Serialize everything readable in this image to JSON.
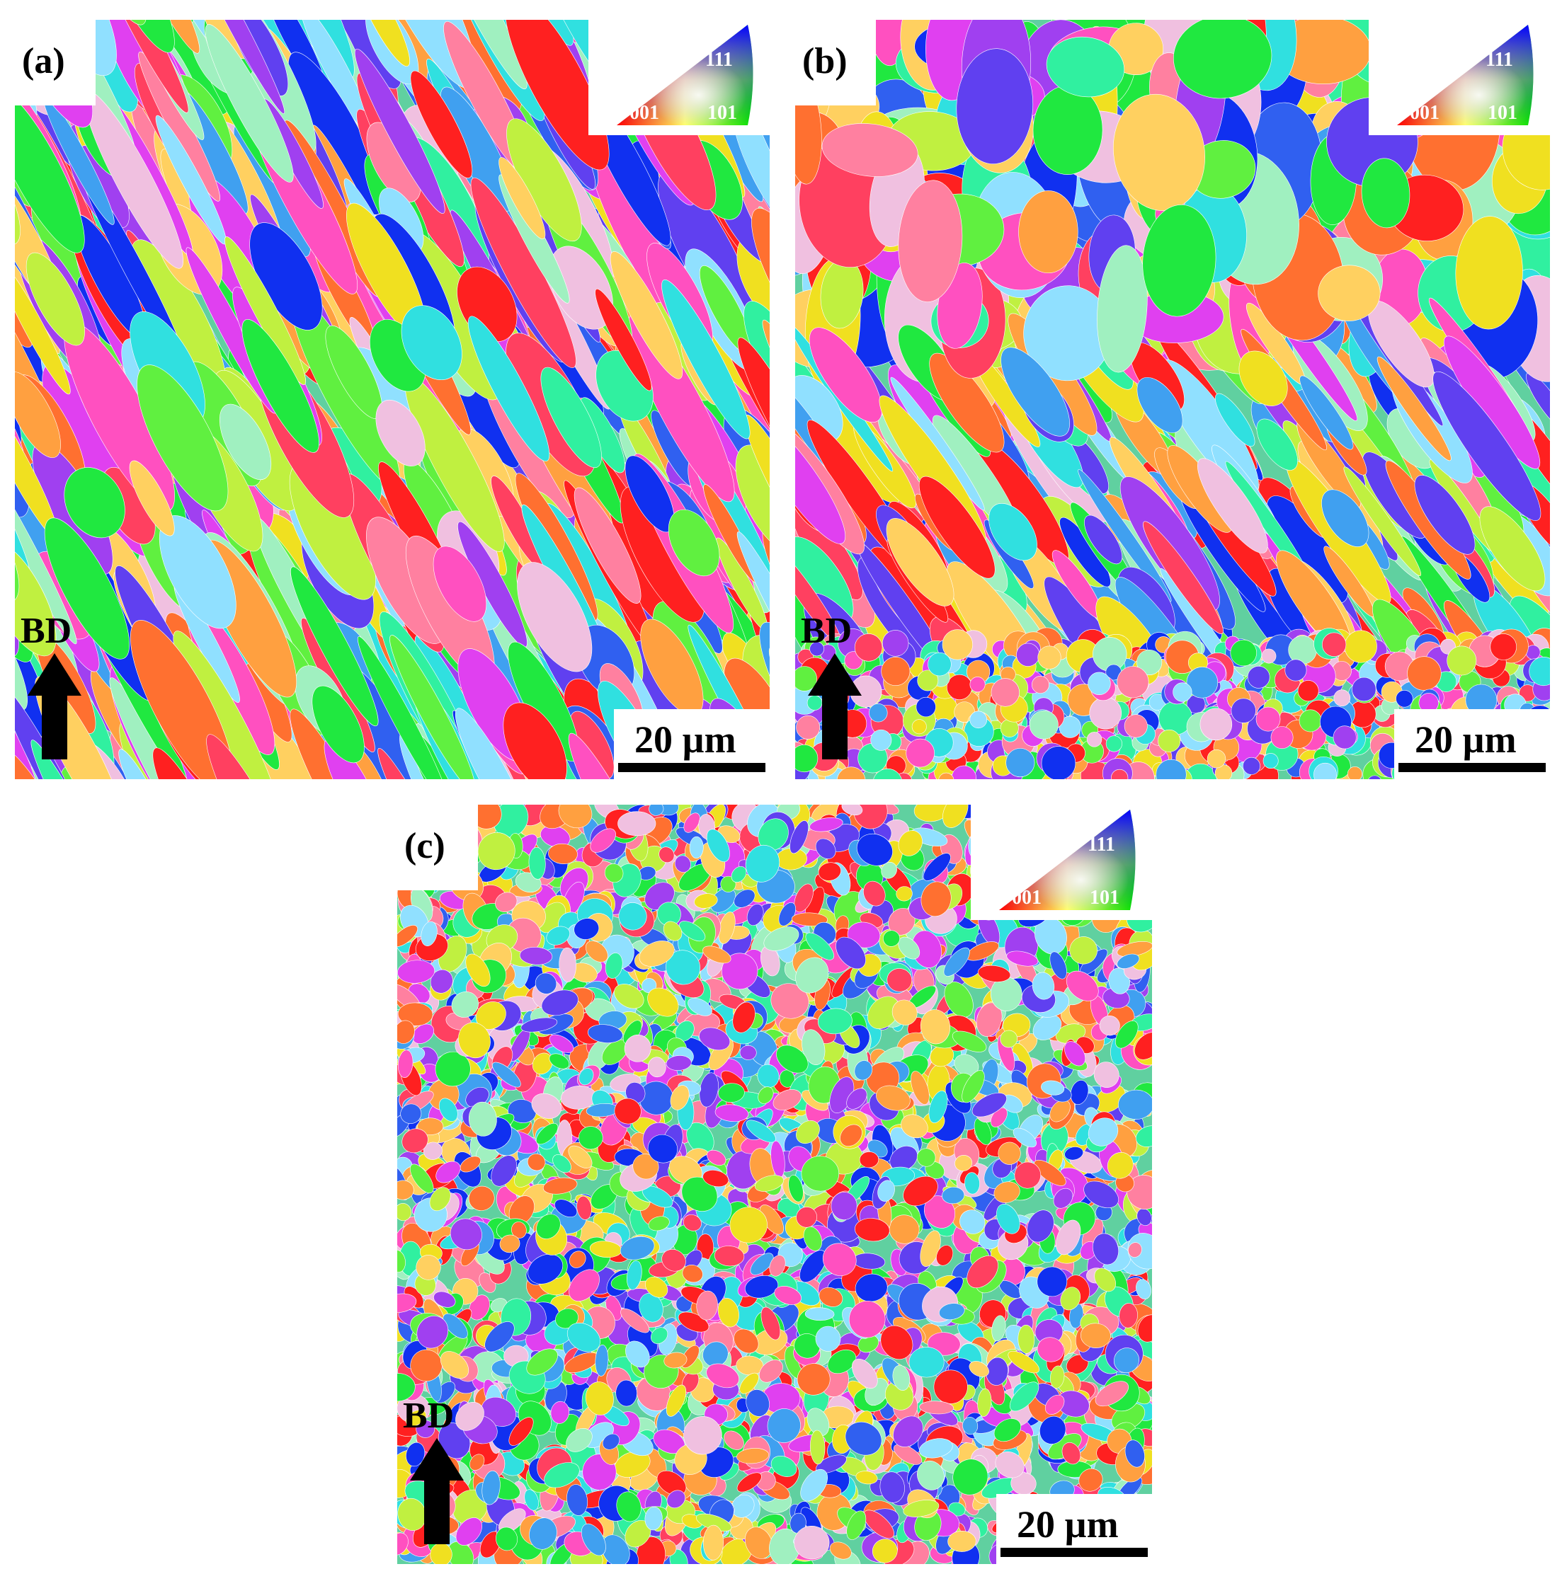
{
  "panels": [
    {
      "label": "(a)",
      "legend": {
        "top": "111",
        "left": "001",
        "right": "101"
      },
      "direction": "BD",
      "scale_bar": "20 µm"
    },
    {
      "label": "(b)",
      "legend": {
        "top": "111",
        "left": "001",
        "right": "101"
      },
      "direction": "BD",
      "scale_bar": "20 µm"
    },
    {
      "label": "(c)",
      "legend": {
        "top": "111",
        "left": "001",
        "right": "101"
      },
      "direction": "BD",
      "scale_bar": "20 µm"
    }
  ]
}
